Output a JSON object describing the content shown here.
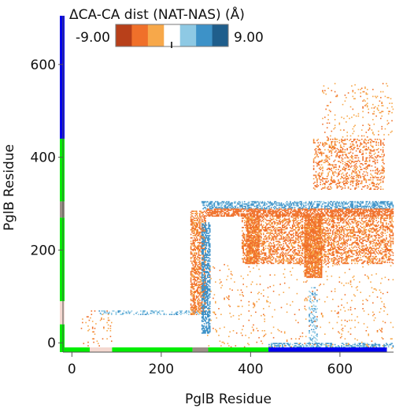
{
  "chart_data": {
    "type": "heatmap",
    "title": "",
    "xlabel": "PglB Residue",
    "ylabel": "PglB Residue",
    "xlim": [
      -20,
      720
    ],
    "ylim": [
      -20,
      705
    ],
    "xticks": [
      0,
      200,
      400,
      600
    ],
    "yticks": [
      0,
      200,
      400,
      600
    ],
    "colorbar": {
      "title": "ΔCA-CA dist (NAT-NAS) (Å)",
      "min_label": "-9.00",
      "max_label": "9.00",
      "range": [
        -9,
        9
      ],
      "colors": [
        "#b8401a",
        "#f0702a",
        "#f7a84a",
        "#ffffff",
        "#8ec9e4",
        "#3d92c8",
        "#1f5e8c"
      ]
    },
    "domain_bars": [
      {
        "start": -20,
        "end": 40,
        "color": "#00ee00"
      },
      {
        "start": 40,
        "end": 90,
        "color": "#f4d8d0"
      },
      {
        "start": 90,
        "end": 270,
        "color": "#00ee00"
      },
      {
        "start": 270,
        "end": 305,
        "color": "#9a8f86"
      },
      {
        "start": 305,
        "end": 440,
        "color": "#00ee00"
      },
      {
        "start": 440,
        "end": 705,
        "color": "#0000ee"
      }
    ],
    "regions": [
      {
        "label": "lower-left orange patches",
        "x": [
          20,
          90
        ],
        "y": [
          -15,
          70
        ],
        "delta": -4.5,
        "density": 0.08
      },
      {
        "label": "horizontal light-blue line at y=65",
        "x": [
          60,
          300
        ],
        "y": [
          60,
          68
        ],
        "delta": 4,
        "density": 0.35
      },
      {
        "label": "vertical orange band x=265-310",
        "x": [
          265,
          300
        ],
        "y": [
          60,
          285
        ],
        "delta": -5,
        "density": 0.55
      },
      {
        "label": "vertical blue band x=290-310",
        "x": [
          290,
          310
        ],
        "y": [
          20,
          260
        ],
        "delta": 6,
        "density": 0.6
      },
      {
        "label": "horizontal blue band y=290-305",
        "x": [
          290,
          720
        ],
        "y": [
          288,
          305
        ],
        "delta": 5,
        "density": 0.55
      },
      {
        "label": "horizontal orange band y=275-288",
        "x": [
          300,
          720
        ],
        "y": [
          272,
          288
        ],
        "delta": -6,
        "density": 0.7
      },
      {
        "label": "large orange block",
        "x": [
          380,
          720
        ],
        "y": [
          170,
          272
        ],
        "delta": -5,
        "density": 0.45
      },
      {
        "label": "vertical orange stripe x=520-560",
        "x": [
          520,
          560
        ],
        "y": [
          140,
          272
        ],
        "delta": -5,
        "density": 0.8
      },
      {
        "label": "vertical orange stripe x=390-420",
        "x": [
          390,
          420
        ],
        "y": [
          170,
          272
        ],
        "delta": -5,
        "density": 0.75
      },
      {
        "label": "upper orange blocks",
        "x": [
          540,
          700
        ],
        "y": [
          330,
          440
        ],
        "delta": -5,
        "density": 0.28
      },
      {
        "label": "blue vertical near x=540",
        "x": [
          530,
          550
        ],
        "y": [
          0,
          120
        ],
        "delta": 4,
        "density": 0.25
      },
      {
        "label": "blue line at y=-5",
        "x": [
          440,
          720
        ],
        "y": [
          -10,
          -2
        ],
        "delta": 5,
        "density": 0.5
      },
      {
        "label": "sparse upper points",
        "x": [
          560,
          720
        ],
        "y": [
          440,
          560
        ],
        "delta": -4,
        "density": 0.05
      },
      {
        "label": "sparse scatter",
        "x": [
          300,
          720
        ],
        "y": [
          -15,
          170
        ],
        "delta": -4,
        "density": 0.03
      }
    ]
  }
}
